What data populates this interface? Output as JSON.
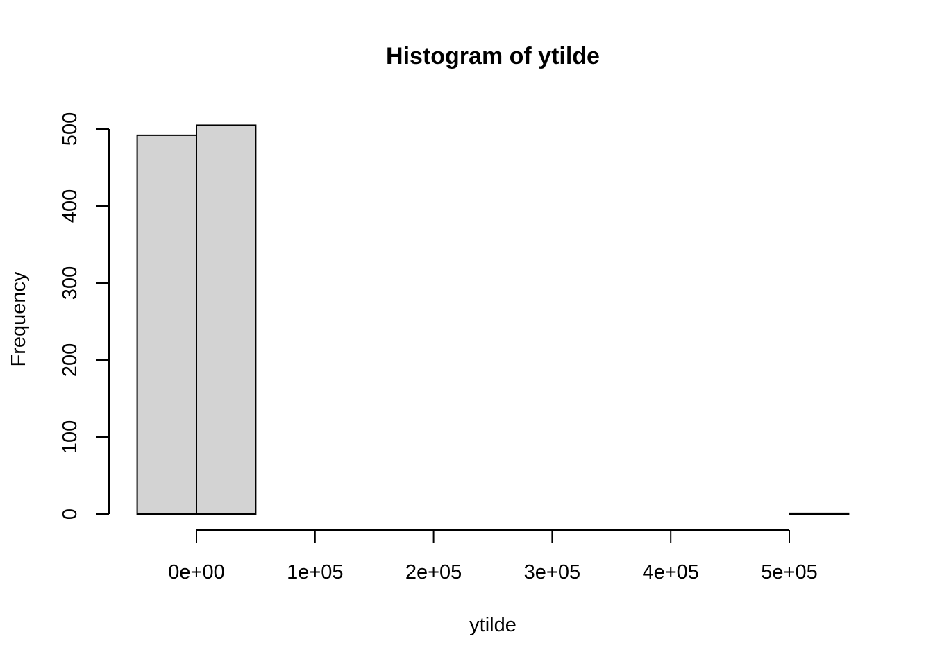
{
  "chart_data": {
    "type": "bar",
    "subtype": "histogram",
    "title": "Histogram of ytilde",
    "xlabel": "ytilde",
    "ylabel": "Frequency",
    "bin_width": 50000,
    "bins": [
      {
        "x0": -50000,
        "x1": 0,
        "count": 492
      },
      {
        "x0": 0,
        "x1": 50000,
        "count": 505
      },
      {
        "x0": 50000,
        "x1": 100000,
        "count": 0
      },
      {
        "x0": 100000,
        "x1": 150000,
        "count": 0
      },
      {
        "x0": 150000,
        "x1": 200000,
        "count": 0
      },
      {
        "x0": 200000,
        "x1": 250000,
        "count": 0
      },
      {
        "x0": 250000,
        "x1": 300000,
        "count": 0
      },
      {
        "x0": 300000,
        "x1": 350000,
        "count": 0
      },
      {
        "x0": 350000,
        "x1": 400000,
        "count": 0
      },
      {
        "x0": 400000,
        "x1": 450000,
        "count": 0
      },
      {
        "x0": 450000,
        "x1": 500000,
        "count": 0
      },
      {
        "x0": 500000,
        "x1": 550000,
        "count": 1
      }
    ],
    "xlim": [
      -50000,
      550000
    ],
    "ylim": [
      0,
      500
    ],
    "x_ticks": [
      0,
      100000,
      200000,
      300000,
      400000,
      500000
    ],
    "x_tick_labels": [
      "0e+00",
      "1e+05",
      "2e+05",
      "3e+05",
      "4e+05",
      "5e+05"
    ],
    "y_ticks": [
      0,
      100,
      200,
      300,
      400,
      500
    ],
    "y_tick_labels": [
      "0",
      "100",
      "200",
      "300",
      "400",
      "500"
    ],
    "grid": false,
    "colors": {
      "bar_fill": "#d3d3d3",
      "bar_stroke": "#000000",
      "background": "#ffffff"
    }
  }
}
